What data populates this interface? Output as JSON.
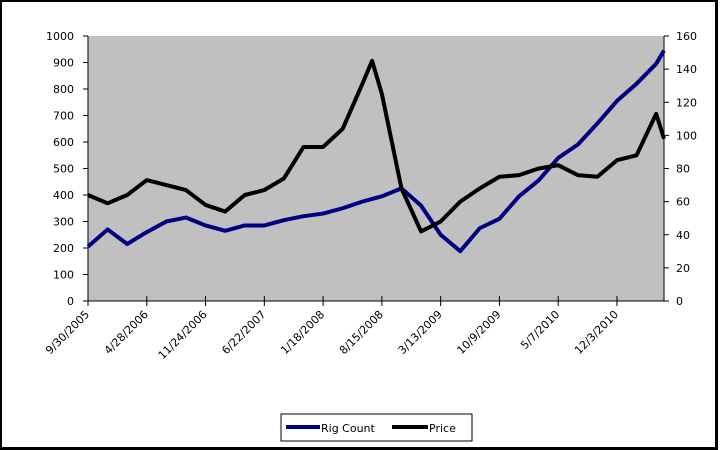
{
  "chart_data": {
    "type": "line",
    "title": "",
    "xlabel": "",
    "ylabel": "",
    "y2label": "",
    "ylim": [
      0,
      1000
    ],
    "y2lim": [
      0,
      160
    ],
    "yticks": [
      "0",
      "100",
      "200",
      "300",
      "400",
      "500",
      "600",
      "700",
      "800",
      "900",
      "1000"
    ],
    "y2ticks": [
      "0",
      "20",
      "40",
      "60",
      "80",
      "100",
      "120",
      "140",
      "160"
    ],
    "xticks": [
      "9/30/2005",
      "4/28/2006",
      "11/24/2006",
      "6/22/2007",
      "1/18/2008",
      "8/15/2008",
      "3/13/2009",
      "10/9/2009",
      "5/7/2010",
      "12/3/2010"
    ],
    "xlim": [
      "9/30/2005",
      "5/20/2011"
    ],
    "grid": false,
    "plot_background": "#c0c0c0",
    "legend_position": "bottom",
    "x": [
      "9/30/2005",
      "12/9/2005",
      "2/17/2006",
      "4/28/2006",
      "7/7/2006",
      "9/15/2006",
      "11/24/2006",
      "2/2/2007",
      "4/13/2007",
      "6/22/2007",
      "8/31/2007",
      "11/9/2007",
      "1/18/2008",
      "3/28/2008",
      "6/6/2008",
      "7/11/2008",
      "8/15/2008",
      "10/24/2008",
      "1/2/2009",
      "3/13/2009",
      "5/22/2009",
      "7/31/2009",
      "10/9/2009",
      "12/18/2009",
      "2/26/2010",
      "5/7/2010",
      "7/16/2010",
      "9/24/2010",
      "12/3/2010",
      "2/11/2011",
      "4/22/2011",
      "5/20/2011"
    ],
    "series": [
      {
        "name": "Rig Count",
        "axis": "left",
        "color": "#000080",
        "values": [
          205,
          270,
          215,
          260,
          300,
          315,
          285,
          265,
          285,
          285,
          305,
          320,
          330,
          350,
          375,
          385,
          395,
          425,
          360,
          250,
          188,
          275,
          310,
          395,
          455,
          540,
          590,
          670,
          755,
          820,
          895,
          945
        ]
      },
      {
        "name": "Price",
        "axis": "right",
        "color": "#000000",
        "values": [
          64,
          59,
          64,
          73,
          70,
          67,
          58,
          54,
          64,
          67,
          74,
          93,
          93,
          104,
          131,
          145,
          125,
          68,
          42,
          48,
          60,
          68,
          75,
          76,
          80,
          82,
          76,
          75,
          85,
          88,
          113,
          98
        ]
      }
    ]
  }
}
